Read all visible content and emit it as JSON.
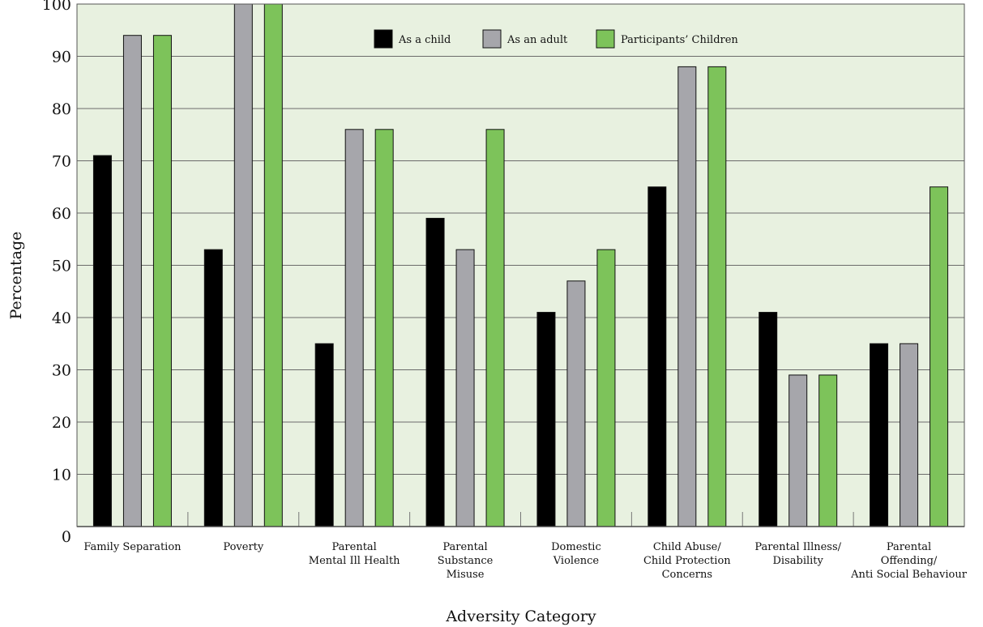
{
  "chart_data": {
    "type": "bar",
    "title": "",
    "xlabel": "Adversity Category",
    "ylabel": "Percentage",
    "ylim": [
      0,
      100
    ],
    "yticks": [
      0,
      10,
      20,
      30,
      40,
      50,
      60,
      70,
      80,
      90,
      100
    ],
    "grid": true,
    "legend_position": "top-center",
    "categories": [
      [
        "Family Separation"
      ],
      [
        "Poverty"
      ],
      [
        "Parental",
        "Mental Ill Health"
      ],
      [
        "Parental",
        "Substance",
        "Misuse"
      ],
      [
        "Domestic",
        "Violence"
      ],
      [
        "Child Abuse/",
        "Child Protection",
        "Concerns"
      ],
      [
        "Parental Illness/",
        "Disability"
      ],
      [
        "Parental",
        "Offending/",
        "Anti Social Behaviour"
      ]
    ],
    "series": [
      {
        "name": "As a child",
        "color": "#000000",
        "values": [
          71,
          53,
          35,
          59,
          41,
          65,
          41,
          35
        ]
      },
      {
        "name": "As an adult",
        "color": "#a6a6ab",
        "values": [
          94,
          100,
          76,
          53,
          47,
          88,
          29,
          35
        ]
      },
      {
        "name": "Participants’ Children",
        "color": "#7dc35a",
        "values": [
          94,
          100,
          76,
          76,
          53,
          88,
          29,
          65
        ]
      }
    ],
    "plot_background": "#e8f1e0"
  }
}
